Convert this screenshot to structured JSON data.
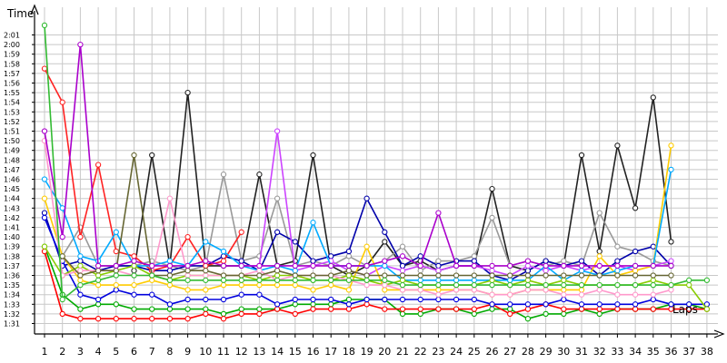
{
  "chart_data": {
    "type": "line",
    "ylabel": "Time",
    "xlabel": "Laps",
    "y_unit": "minutes:seconds",
    "ylim": [
      "1:30",
      "2:03"
    ],
    "xlim": [
      1,
      38
    ],
    "grid": true,
    "y_tick_labels": [
      "1:31",
      "1:32",
      "1:33",
      "1:34",
      "1:35",
      "1:36",
      "1:37",
      "1:38",
      "1:39",
      "1:40",
      "1:41",
      "1:42",
      "1:43",
      "1:44",
      "1:45",
      "1:46",
      "1:47",
      "1:48",
      "1:49",
      "1:50",
      "1:51",
      "1:52",
      "1:53",
      "1:54",
      "1:55",
      "1:56",
      "1:57",
      "1:58",
      "1:59",
      "2:00",
      "2:01"
    ],
    "x_tick_labels": [
      "1",
      "2",
      "3",
      "4",
      "5",
      "6",
      "7",
      "8",
      "9",
      "10",
      "11",
      "12",
      "13",
      "14",
      "15",
      "16",
      "17",
      "18",
      "19",
      "20",
      "21",
      "22",
      "23",
      "24",
      "25",
      "26",
      "27",
      "28",
      "29",
      "30",
      "31",
      "32",
      "33",
      "34",
      "35",
      "36",
      "37",
      "38"
    ],
    "series": [
      {
        "color": "#222222",
        "values": [
          null,
          null,
          null,
          null,
          null,
          "1:36.5",
          "1:48.5",
          "1:37.0",
          "1:55.0",
          "1:37.0",
          "1:37.0",
          "1:37.0",
          "1:46.5",
          "1:37.0",
          "1:37.5",
          "1:48.5",
          "1:37.0",
          "1:36.0",
          "1:37.0",
          "1:39.5",
          "1:37.0",
          "1:37.5",
          "1:36.5",
          "1:37.0",
          "1:37.0",
          "1:45.0",
          "1:37.0",
          "1:36.5",
          "1:37.5",
          "1:37.0",
          "1:48.5",
          "1:38.5",
          "1:49.5",
          "1:43.0",
          "1:54.5",
          "1:39.5",
          null,
          null
        ]
      },
      {
        "color": "#999999",
        "values": [
          null,
          "1:38.0",
          "1:41.0",
          "1:37.0",
          "1:37.0",
          "1:37.0",
          "1:37.5",
          "1:37.0",
          "1:36.5",
          "1:37.0",
          "1:46.5",
          "1:37.5",
          "1:38.0",
          "1:44.0",
          "1:37.0",
          "1:37.5",
          "1:37.0",
          "1:38.0",
          "1:37.0",
          "1:37.5",
          "1:39.0",
          "1:36.5",
          "1:37.5",
          "1:37.5",
          "1:38.0",
          "1:42.0",
          "1:37.0",
          "1:37.5",
          "1:37.0",
          "1:37.5",
          "1:37.0",
          "1:42.5",
          "1:39.0",
          "1:38.5",
          "1:37.5",
          "1:37.0",
          null,
          null
        ]
      },
      {
        "color": "#0000aa",
        "values": [
          "1:42.5",
          "1:37.0",
          "1:37.5",
          "1:36.5",
          "1:37.0",
          "1:37.0",
          "1:36.5",
          "1:36.5",
          "1:37.0",
          "1:37.0",
          "1:38.0",
          "1:37.5",
          "1:36.5",
          "1:40.5",
          "1:39.5",
          "1:37.5",
          "1:38.0",
          "1:38.5",
          "1:44.0",
          "1:40.5",
          "1:37.0",
          "1:38.0",
          "1:37.0",
          "1:37.5",
          "1:37.5",
          "1:36.0",
          "1:35.5",
          "1:36.5",
          "1:37.5",
          "1:37.0",
          "1:37.5",
          "1:36.0",
          "1:37.5",
          "1:38.5",
          "1:39.0",
          "1:37.0",
          null,
          null
        ]
      },
      {
        "color": "#ff2222",
        "values": [
          "1:57.5",
          "1:54.0",
          "1:40.0",
          "1:47.5",
          "1:38.5",
          "1:38.0",
          "1:36.5",
          "1:37.0",
          "1:40.0",
          "1:37.0",
          "1:37.5",
          "1:40.5",
          null,
          null,
          null,
          null,
          null,
          null,
          null,
          null,
          null,
          null,
          null,
          null,
          null,
          null,
          null,
          null,
          null,
          null,
          null,
          null,
          null,
          null,
          null,
          null,
          null,
          null
        ]
      },
      {
        "color": "#cc44ff",
        "values": [
          null,
          null,
          null,
          null,
          null,
          null,
          null,
          null,
          null,
          null,
          null,
          "1:37.0",
          "1:37.0",
          "1:51.0",
          "1:36.5",
          "1:37.0",
          "1:37.5",
          "1:36.5",
          "1:36.0",
          "1:37.0",
          "1:36.5",
          "1:37.0",
          "1:36.5",
          "1:37.0",
          "1:37.0",
          "1:36.5",
          "1:36.0",
          "1:37.0",
          "1:36.5",
          "1:37.0",
          "1:36.5",
          "1:37.0",
          "1:37.0",
          "1:36.5",
          "1:37.0",
          "1:37.5",
          null,
          null
        ]
      },
      {
        "color": "#00aa00",
        "values": [
          "1:39.0",
          "1:34.0",
          "1:32.5",
          "1:33.0",
          "1:33.0",
          "1:32.5",
          "1:32.5",
          "1:32.5",
          "1:32.5",
          "1:32.5",
          "1:32.0",
          "1:32.5",
          "1:32.5",
          "1:32.5",
          "1:33.0",
          "1:33.0",
          "1:33.0",
          "1:33.5",
          "1:33.5",
          "1:33.5",
          "1:32.0",
          "1:32.0",
          "1:32.5",
          "1:32.5",
          "1:32.0",
          "1:32.5",
          "1:32.5",
          "1:31.5",
          "1:32.0",
          "1:32.0",
          "1:32.5",
          "1:32.0",
          "1:32.5",
          "1:32.5",
          "1:32.5",
          "1:33.0",
          "1:33.0",
          "1:32.5"
        ]
      },
      {
        "color": "#ff0000",
        "values": [
          "1:38.5",
          "1:32.0",
          "1:31.5",
          "1:31.5",
          "1:31.5",
          "1:31.5",
          "1:31.5",
          "1:31.5",
          "1:31.5",
          "1:32.0",
          "1:31.5",
          "1:32.0",
          "1:32.0",
          "1:32.5",
          "1:32.0",
          "1:32.5",
          "1:32.5",
          "1:32.5",
          "1:33.0",
          "1:32.5",
          "1:32.5",
          "1:32.5",
          "1:32.5",
          "1:32.5",
          "1:32.5",
          "1:33.0",
          "1:32.0",
          "1:32.5",
          "1:33.0",
          "1:32.5",
          "1:32.5",
          "1:32.5",
          "1:32.5",
          "1:32.5",
          "1:32.5",
          "1:32.5",
          "1:32.5",
          "1:32.5"
        ]
      },
      {
        "color": "#0000dd",
        "values": [
          "1:42.0",
          "1:37.5",
          "1:34.0",
          "1:33.5",
          "1:34.5",
          "1:34.0",
          "1:34.0",
          "1:33.0",
          "1:33.5",
          "1:33.5",
          "1:33.5",
          "1:34.0",
          "1:34.0",
          "1:33.0",
          "1:33.5",
          "1:33.5",
          "1:33.5",
          "1:33.0",
          "1:33.5",
          "1:33.5",
          "1:33.5",
          "1:33.5",
          "1:33.5",
          "1:33.5",
          "1:33.5",
          "1:33.0",
          "1:33.0",
          "1:33.0",
          "1:33.0",
          "1:33.5",
          "1:33.0",
          "1:33.0",
          "1:33.0",
          "1:33.0",
          "1:33.5",
          "1:33.0",
          "1:33.0",
          "1:33.0"
        ]
      },
      {
        "color": "#ffcc00",
        "values": [
          "1:44.0",
          "1:38.0",
          "1:35.5",
          "1:35.0",
          "1:35.0",
          "1:35.0",
          "1:35.5",
          "1:35.0",
          "1:34.5",
          "1:34.5",
          "1:35.0",
          "1:35.0",
          "1:35.0",
          "1:35.0",
          "1:35.0",
          "1:34.5",
          "1:35.0",
          "1:34.5",
          "1:39.0",
          "1:34.5",
          "1:34.5",
          "1:34.5",
          "1:34.5",
          "1:34.5",
          "1:34.5",
          "1:34.0",
          "1:34.0",
          "1:34.5",
          "1:34.5",
          "1:34.5",
          "1:34.5",
          "1:38.0",
          "1:36.0",
          "1:36.5",
          "1:37.0",
          "1:49.5",
          null,
          null
        ]
      },
      {
        "color": "#00aaff",
        "values": [
          "1:46.0",
          "1:43.0",
          "1:38.0",
          "1:37.5",
          "1:40.5",
          "1:37.0",
          "1:37.0",
          "1:37.5",
          "1:37.0",
          "1:39.5",
          "1:38.5",
          "1:37.0",
          "1:36.5",
          "1:37.0",
          "1:36.5",
          "1:41.5",
          "1:37.0",
          "1:37.0",
          "1:37.0",
          "1:37.0",
          "1:35.5",
          "1:35.5",
          "1:35.5",
          "1:35.5",
          "1:35.5",
          "1:35.5",
          "1:35.5",
          "1:35.5",
          "1:37.0",
          "1:35.5",
          "1:36.5",
          "1:36.0",
          "1:36.5",
          "1:37.0",
          "1:37.0",
          "1:47.0",
          null,
          null
        ]
      },
      {
        "color": "#88cc00",
        "values": [
          "1:39.0",
          "1:36.0",
          "1:37.0",
          "1:36.0",
          "1:36.5",
          "1:37.0",
          "1:36.0",
          "1:35.5",
          "1:36.0",
          "1:36.0",
          "1:36.0",
          "1:36.0",
          "1:35.5",
          "1:36.0",
          "1:36.0",
          "1:35.5",
          "1:35.5",
          "1:36.0",
          "1:35.5",
          "1:35.0",
          "1:35.5",
          "1:35.0",
          "1:35.0",
          "1:35.0",
          "1:35.0",
          "1:35.5",
          "1:35.0",
          "1:35.5",
          "1:35.0",
          "1:35.5",
          "1:35.0",
          "1:35.0",
          "1:35.0",
          "1:35.0",
          "1:35.5",
          "1:35.0",
          "1:35.0",
          "1:32.5"
        ]
      },
      {
        "color": "#ff99cc",
        "values": [
          "1:50.0",
          "1:36.0",
          "1:36.5",
          "1:36.5",
          "1:36.5",
          "1:36.0",
          "1:36.0",
          "1:44.0",
          "1:36.0",
          "1:36.0",
          "1:36.0",
          "1:36.0",
          "1:36.5",
          "1:35.5",
          "1:36.0",
          "1:36.0",
          "1:36.0",
          "1:35.5",
          "1:35.0",
          "1:35.0",
          "1:34.5",
          "1:34.5",
          "1:34.0",
          "1:34.5",
          "1:34.5",
          "1:34.0",
          "1:34.0",
          "1:34.5",
          "1:34.5",
          "1:34.0",
          "1:34.0",
          "1:34.5",
          "1:34.0",
          "1:34.0",
          "1:34.0",
          "1:34.5",
          null,
          null
        ]
      },
      {
        "color": "#666633",
        "values": [
          null,
          "1:38.0",
          "1:36.0",
          "1:36.5",
          "1:36.5",
          "1:48.5",
          "1:36.0",
          "1:36.0",
          "1:36.5",
          "1:36.5",
          "1:36.0",
          "1:36.0",
          "1:36.0",
          "1:36.5",
          "1:36.0",
          "1:36.0",
          "1:36.0",
          "1:36.5",
          "1:36.0",
          "1:36.0",
          "1:36.0",
          "1:36.0",
          "1:36.0",
          "1:36.0",
          "1:36.0",
          "1:36.0",
          "1:36.0",
          "1:36.0",
          "1:36.0",
          "1:36.0",
          "1:36.0",
          "1:36.0",
          "1:36.0",
          "1:36.0",
          "1:36.0",
          "1:36.0",
          null,
          null
        ]
      },
      {
        "color": "#aa00cc",
        "values": [
          "1:51.0",
          "1:40.0",
          "2:00.0",
          "1:37.0",
          "1:37.0",
          "1:37.5",
          "1:37.0",
          "1:37.0",
          "1:37.0",
          "1:37.5",
          "1:37.0",
          "1:37.0",
          "1:37.0",
          "1:37.0",
          "1:37.0",
          "1:37.0",
          "1:37.0",
          "1:37.0",
          "1:37.0",
          "1:37.5",
          "1:38.0",
          "1:37.0",
          "1:42.5",
          "1:37.0",
          "1:37.0",
          "1:37.0",
          "1:37.0",
          "1:37.5",
          "1:37.0",
          "1:37.0",
          "1:37.0",
          "1:37.0",
          "1:37.0",
          "1:37.0",
          "1:37.0",
          "1:37.0",
          null,
          null
        ]
      },
      {
        "color": "#33bb33",
        "values": [
          "2:02.0",
          "1:33.5",
          "1:35.0",
          "1:35.5",
          "1:36.0",
          "1:36.0",
          "1:36.0",
          "1:35.5",
          "1:35.5",
          "1:35.5",
          "1:35.5",
          "1:35.5",
          "1:35.5",
          "1:35.5",
          "1:35.5",
          "1:35.5",
          "1:35.5",
          "1:35.5",
          "1:35.5",
          "1:35.5",
          "1:35.0",
          "1:35.0",
          "1:35.0",
          "1:35.0",
          "1:35.0",
          "1:35.0",
          "1:35.0",
          "1:35.0",
          "1:35.0",
          "1:35.0",
          "1:35.0",
          "1:35.0",
          "1:35.0",
          "1:35.0",
          "1:35.0",
          "1:35.0",
          "1:35.5",
          "1:35.5"
        ]
      }
    ]
  }
}
